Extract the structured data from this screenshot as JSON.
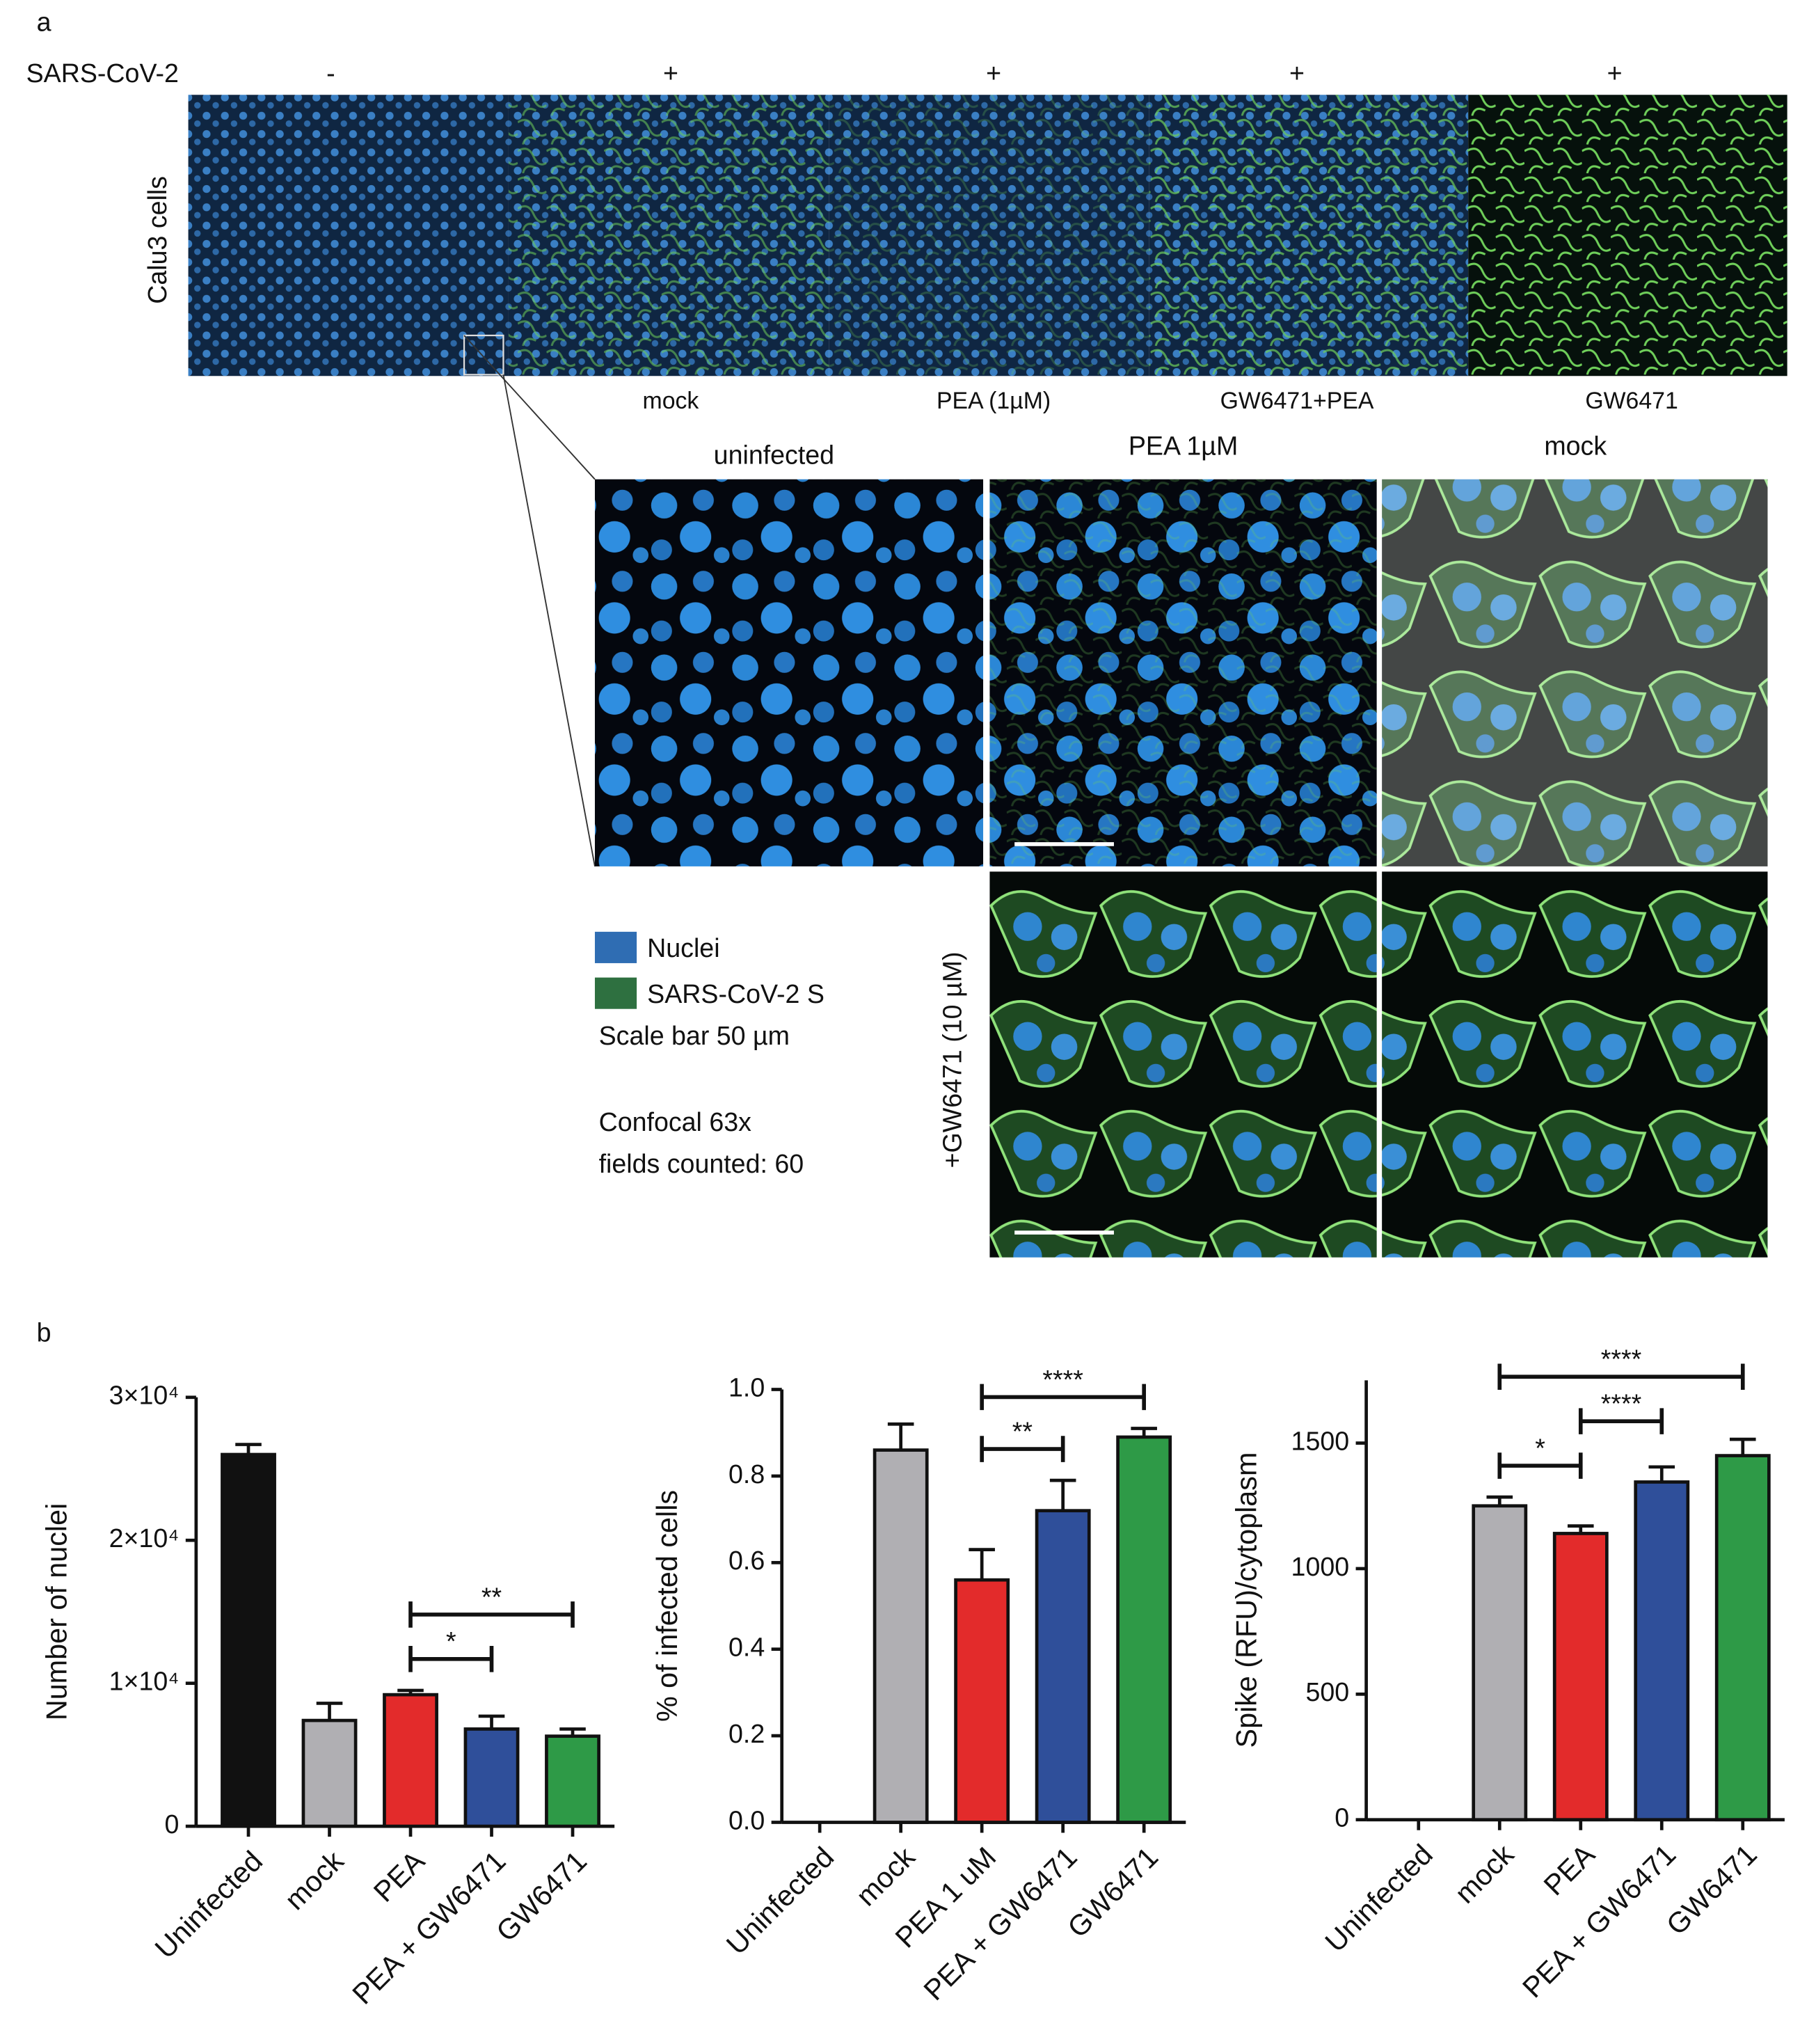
{
  "panel_a": {
    "label": "a",
    "row_label": "SARS-CoV-2",
    "infection": [
      "-",
      "+",
      "+",
      "+",
      "+"
    ],
    "side_label": "Calu3 cells",
    "conditions": [
      "mock",
      "PEA (1µM)",
      "GW6471+PEA",
      "GW6471"
    ],
    "zoom_titles": [
      "uninfected",
      "PEA 1µM",
      "mock"
    ],
    "zoom_side_label": "+GW6471 (10 µM)",
    "legend": [
      {
        "name": "Nuclei",
        "color": "#2f6db3"
      },
      {
        "name": "SARS-CoV-2 S",
        "color": "#2e7040"
      }
    ],
    "notes": [
      "Scale bar 50 µm",
      "Confocal 63x",
      "fields counted: 60"
    ]
  },
  "panel_b": {
    "label": "b"
  },
  "chart_data": [
    {
      "type": "bar",
      "ylabel": "Number of nuclei",
      "categories": [
        "Uninfected",
        "mock",
        "PEA",
        "PEA + GW6471",
        "GW6471"
      ],
      "values": [
        26000,
        7400,
        9200,
        6800,
        6300
      ],
      "errors": [
        700,
        1200,
        300,
        900,
        500
      ],
      "colors": [
        "#111111",
        "#b0afb3",
        "#e32b2b",
        "#2f4f9a",
        "#2e9a47"
      ],
      "ylim": [
        0,
        30000
      ],
      "yticks": [
        0,
        {
          "value": 10000,
          "label": "1×10⁴"
        },
        {
          "value": 20000,
          "label": "2×10⁴"
        },
        {
          "value": 30000,
          "label": "3×10⁴"
        }
      ],
      "significance": [
        {
          "from": 2,
          "to": 3,
          "label": "*"
        },
        {
          "from": 2,
          "to": 4,
          "label": "**"
        }
      ]
    },
    {
      "type": "bar",
      "ylabel": "% of infected cells",
      "categories": [
        "Uninfected",
        "mock",
        "PEA 1 uM",
        "PEA + GW6471",
        "GW6471"
      ],
      "values": [
        0,
        0.86,
        0.56,
        0.72,
        0.89
      ],
      "errors": [
        0,
        0.06,
        0.07,
        0.07,
        0.02
      ],
      "colors": [
        "#111111",
        "#b0afb3",
        "#e32b2b",
        "#2f4f9a",
        "#2e9a47"
      ],
      "ylim": [
        0,
        1.0
      ],
      "yticks": [
        {
          "value": 0,
          "label": "0.0"
        },
        0.2,
        0.4,
        0.6,
        0.8,
        {
          "value": 1,
          "label": "1.0"
        }
      ],
      "significance": [
        {
          "from": 2,
          "to": 3,
          "label": "**"
        },
        {
          "from": 2,
          "to": 4,
          "label": "****"
        }
      ]
    },
    {
      "type": "bar",
      "ylabel": "Spike (RFU)/cytoplasm",
      "categories": [
        "Uninfected",
        "mock",
        "PEA",
        "PEA + GW6471",
        "GW6471"
      ],
      "values": [
        0,
        1250,
        1140,
        1345,
        1450
      ],
      "errors": [
        0,
        35,
        30,
        60,
        65
      ],
      "colors": [
        "#111111",
        "#b0afb3",
        "#e32b2b",
        "#2f4f9a",
        "#2e9a47"
      ],
      "ylim": [
        0,
        1750
      ],
      "yticks": [
        0,
        500,
        1000,
        1500
      ],
      "significance": [
        {
          "from": 1,
          "to": 2,
          "label": "*"
        },
        {
          "from": 2,
          "to": 3,
          "label": "****"
        },
        {
          "from": 1,
          "to": 4,
          "label": "****"
        }
      ]
    }
  ]
}
